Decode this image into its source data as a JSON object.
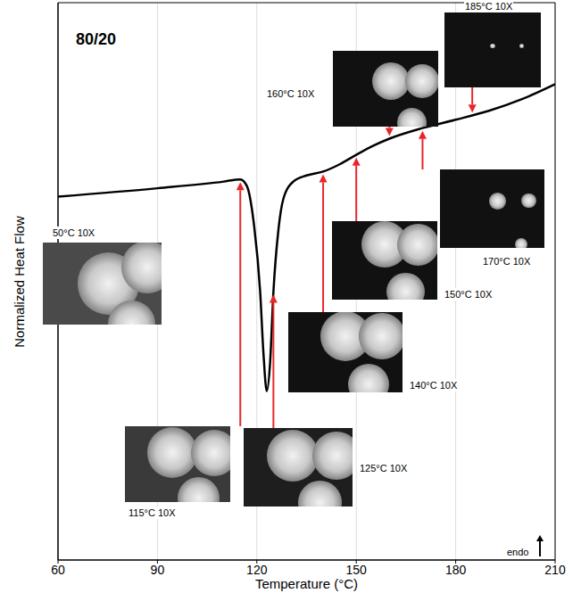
{
  "chart_data": {
    "type": "line",
    "title": "80/20",
    "xlabel": "Temperature (°C)",
    "ylabel": "Normalized Heat Flow",
    "x": [
      60,
      90,
      110,
      115,
      117,
      119,
      121,
      122,
      123,
      124,
      125,
      126.5,
      128,
      131,
      135,
      140,
      145,
      150,
      155,
      160,
      170,
      180,
      190,
      200,
      210
    ],
    "values": [
      65.2,
      66.7,
      67.9,
      68.3,
      67.1,
      60.8,
      48.1,
      37.0,
      30.3,
      35.4,
      48.1,
      59.2,
      64.8,
      67.9,
      69.0,
      69.7,
      71.0,
      72.7,
      74.3,
      75.6,
      77.5,
      79.0,
      80.6,
      82.7,
      85.4
    ],
    "color": "#000000",
    "xlim": [
      60,
      210
    ],
    "xticks": [
      60,
      90,
      120,
      150,
      180,
      210
    ],
    "ylim": [
      0,
      100
    ],
    "grid": true,
    "tick_labels": "x",
    "annotations": [
      {
        "text": "endo"
      }
    ],
    "insets": {
      "color": "#e8262a",
      "items": [
        {
          "label": "50°C 10X"
        },
        {
          "label": "115°C 10X",
          "x": 115
        },
        {
          "label": "125°C 10X",
          "x": 125
        },
        {
          "label": "140°C 10X",
          "x": 140
        },
        {
          "label": "150°C 10X",
          "x": 150
        },
        {
          "label": "160°C 10X",
          "x": 160
        },
        {
          "label": "170°C 10X",
          "x": 170
        },
        {
          "label": "185°C 10X",
          "x": 185
        }
      ]
    }
  }
}
